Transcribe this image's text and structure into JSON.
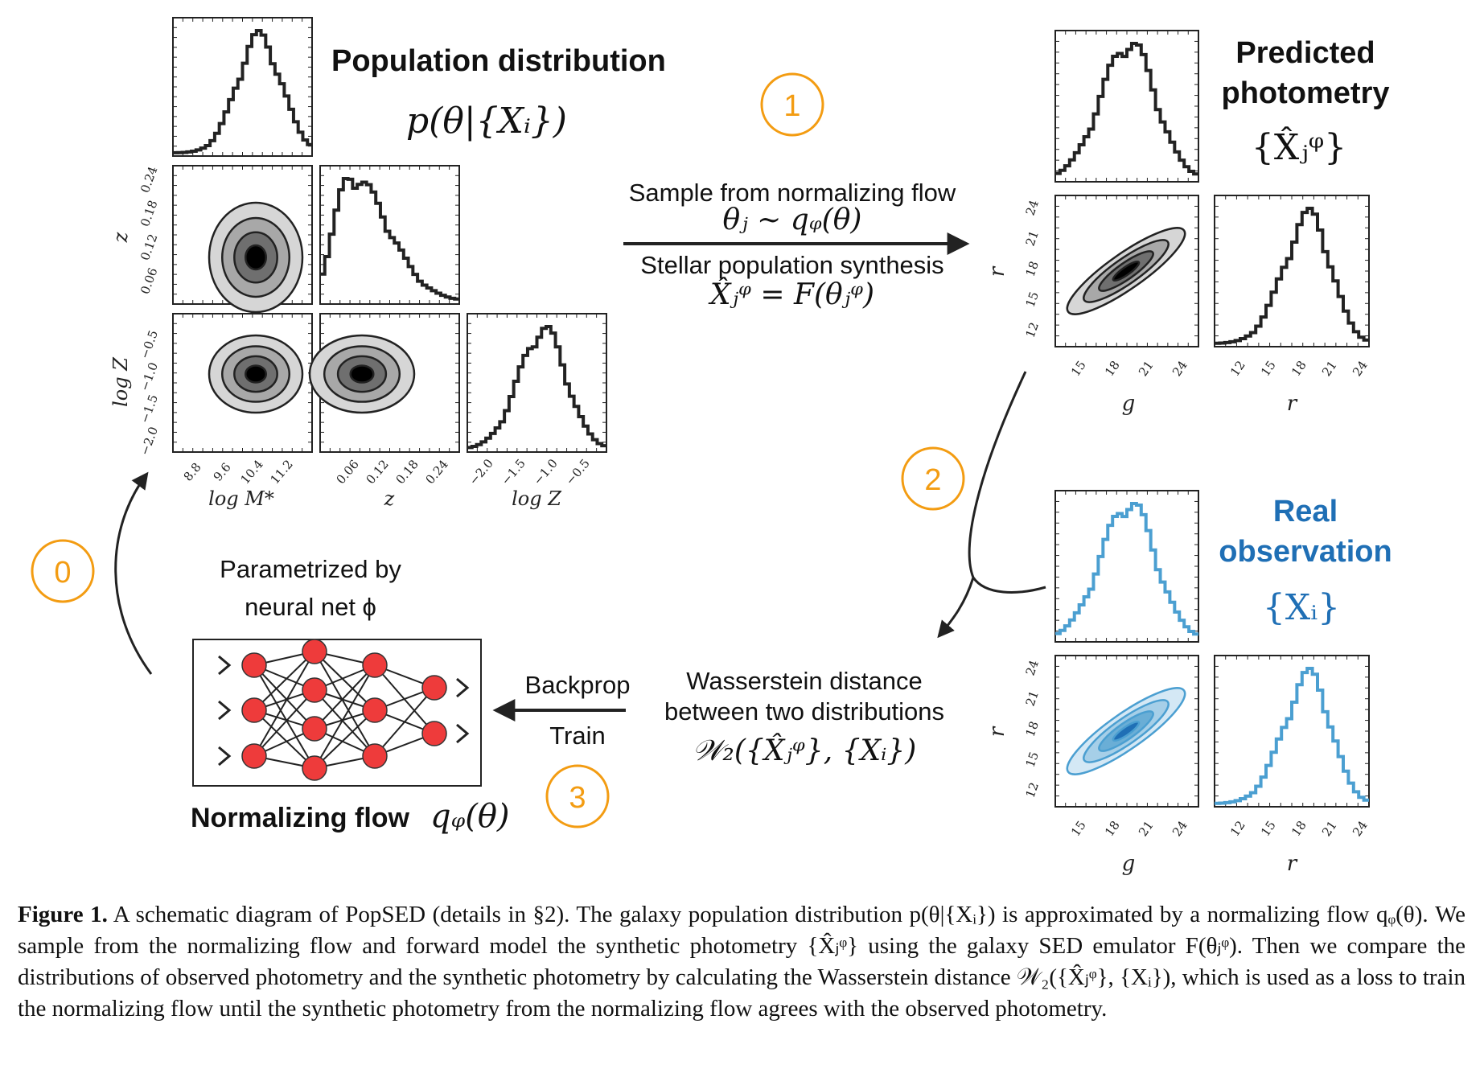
{
  "colors": {
    "accent_orange": "#f39c12",
    "observed_blue": "#1f6fb5",
    "observed_line": "#4b9fd1",
    "black": "#222222"
  },
  "titles": {
    "population": "Population distribution",
    "population_math": "p(θ|{Xᵢ})",
    "predicted_line1": "Predicted",
    "predicted_line2": "photometry",
    "predicted_math": "{X̂ⱼᵠ}",
    "real_line1": "Real",
    "real_line2": "observation",
    "real_math": "{Xᵢ}",
    "normalizing_flow": "Normalizing flow",
    "normalizing_flow_math": "qᵩ(θ)"
  },
  "steps": [
    "0",
    "1",
    "2",
    "3"
  ],
  "arrow_labels": {
    "sample_line1": "Sample from normalizing flow",
    "sample_line2": "θⱼ ∼ qᵩ(θ)",
    "sps_line1": "Stellar population synthesis",
    "sps_line2": "X̂ⱼᵠ = F(θⱼᵠ)",
    "backprop": "Backprop",
    "train": "Train",
    "wasserstein_line1": "Wasserstein distance",
    "wasserstein_line2": "between two distributions",
    "wasserstein_line3": "𝒲₂({X̂ⱼᵠ}, {Xᵢ})",
    "parametrized_line1": "Parametrized by",
    "parametrized_line2": "neural net ϕ"
  },
  "corner_population": {
    "x_labels": [
      "log M*",
      "z",
      "log Z"
    ],
    "y_labels": [
      "z",
      "log Z"
    ],
    "ticks_logM": [
      "8.8",
      "9.6",
      "10.4",
      "11.2"
    ],
    "ticks_z": [
      "0.06",
      "0.12",
      "0.18",
      "0.24"
    ],
    "ticks_logZ": [
      "−2.0",
      "−1.5",
      "−1.0",
      "−0.5"
    ]
  },
  "corner_photometry": {
    "x_labels": [
      "g",
      "r"
    ],
    "y_label": "r",
    "ticks": [
      "12",
      "15",
      "18",
      "21",
      "24"
    ],
    "ticks_g": [
      "15",
      "18",
      "21",
      "24"
    ]
  },
  "caption": {
    "label": "Figure 1.",
    "text": "A schematic diagram of PopSED (details in §2). The galaxy population distribution p(θ|{Xᵢ}) is approximated by a normalizing flow qᵩ(θ). We sample from the normalizing flow and forward model the synthetic photometry {X̂ⱼᵠ} using the galaxy SED emulator F(θⱼᵠ). Then we compare the distributions of observed photometry and the synthetic photometry by calculating the Wasserstein distance 𝒲₂({X̂ⱼᵠ}, {Xᵢ}), which is used as a loss to train the normalizing flow until the synthetic photometry from the normalizing flow agrees with the observed photometry."
  }
}
